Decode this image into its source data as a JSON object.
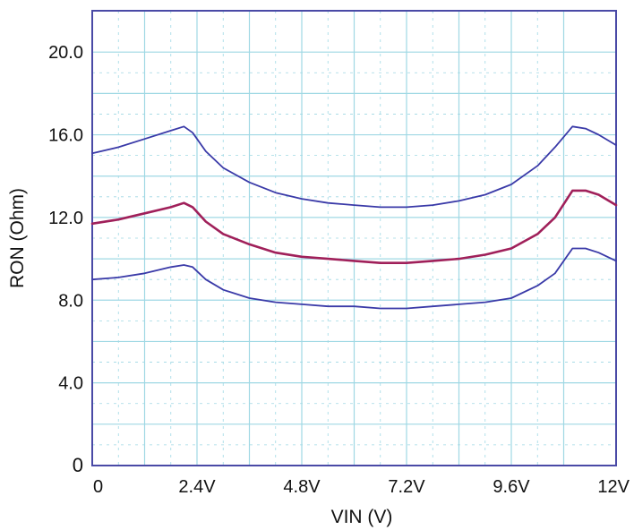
{
  "chart_data": {
    "type": "line",
    "xlabel": "VIN (V)",
    "ylabel": "RON (Ohm)",
    "xlim": [
      0,
      12
    ],
    "ylim": [
      0,
      22
    ],
    "x_ticks": [
      {
        "value": 0,
        "label": "0"
      },
      {
        "value": 2.4,
        "label": "2.4V"
      },
      {
        "value": 4.8,
        "label": "4.8V"
      },
      {
        "value": 7.2,
        "label": "7.2V"
      },
      {
        "value": 9.6,
        "label": "9.6V"
      },
      {
        "value": 12,
        "label": "12V"
      }
    ],
    "y_ticks": [
      {
        "value": 0,
        "label": "0"
      },
      {
        "value": 4,
        "label": "4.0"
      },
      {
        "value": 8,
        "label": "8.0"
      },
      {
        "value": 12,
        "label": "12.0"
      },
      {
        "value": 16,
        "label": "16.0"
      },
      {
        "value": 20,
        "label": "20.0"
      }
    ],
    "grid": true,
    "colors": {
      "upper": "#3a3aa8",
      "middle": "#a0205a",
      "lower": "#3a3aa8",
      "grid": "#9fd8e4",
      "frame": "#4a4aa6"
    },
    "x": [
      0,
      0.6,
      1.2,
      1.8,
      2.1,
      2.3,
      2.6,
      3.0,
      3.6,
      4.2,
      4.8,
      5.4,
      6.0,
      6.6,
      7.2,
      7.8,
      8.4,
      9.0,
      9.6,
      10.2,
      10.6,
      11.0,
      11.3,
      11.6,
      12.0
    ],
    "series": [
      {
        "key": "upper",
        "values": [
          15.1,
          15.4,
          15.8,
          16.2,
          16.4,
          16.1,
          15.2,
          14.4,
          13.7,
          13.2,
          12.9,
          12.7,
          12.6,
          12.5,
          12.5,
          12.6,
          12.8,
          13.1,
          13.6,
          14.5,
          15.4,
          16.4,
          16.3,
          16.0,
          15.5
        ]
      },
      {
        "key": "middle",
        "values": [
          11.7,
          11.9,
          12.2,
          12.5,
          12.7,
          12.5,
          11.8,
          11.2,
          10.7,
          10.3,
          10.1,
          10.0,
          9.9,
          9.8,
          9.8,
          9.9,
          10.0,
          10.2,
          10.5,
          11.2,
          12.0,
          13.3,
          13.3,
          13.1,
          12.6
        ]
      },
      {
        "key": "lower",
        "values": [
          9.0,
          9.1,
          9.3,
          9.6,
          9.7,
          9.6,
          9.0,
          8.5,
          8.1,
          7.9,
          7.8,
          7.7,
          7.7,
          7.6,
          7.6,
          7.7,
          7.8,
          7.9,
          8.1,
          8.7,
          9.3,
          10.5,
          10.5,
          10.3,
          9.9
        ]
      }
    ]
  }
}
